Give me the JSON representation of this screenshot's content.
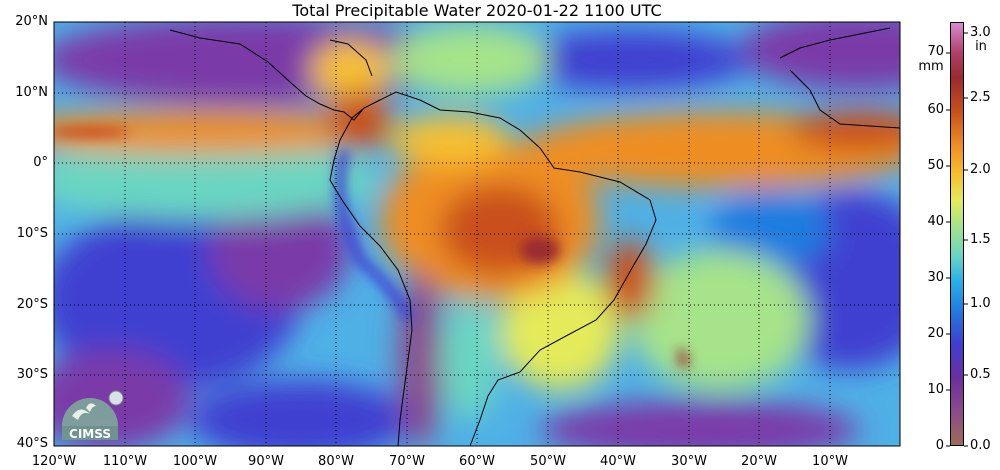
{
  "title": "Total Precipitable Water  2020-01-22 1100 UTC",
  "lat_labels": [
    "20°N",
    "10°N",
    "0°",
    "10°S",
    "20°S",
    "30°S",
    "40°S"
  ],
  "lon_labels": [
    "120°W",
    "110°W",
    "100°W",
    "90°W",
    "80°W",
    "70°W",
    "60°W",
    "50°W",
    "40°W",
    "30°W",
    "20°W",
    "10°W"
  ],
  "colorbar": {
    "left_unit": "mm",
    "right_unit": "in",
    "mm_ticks": [
      "0",
      "10",
      "20",
      "30",
      "40",
      "50",
      "60",
      "70"
    ],
    "in_ticks": [
      "0.0",
      "0.5",
      "1.0",
      "1.5",
      "2.0",
      "2.5",
      "3.0"
    ],
    "colors": [
      "#9e6b5a",
      "#8c4a8a",
      "#6a2fa0",
      "#3f3fd0",
      "#1f7de0",
      "#29b2e8",
      "#6bd6c2",
      "#a6e38a",
      "#e4ea5a",
      "#f6c030",
      "#ee8e24",
      "#c9501a",
      "#9a2a30",
      "#b0406a",
      "#d98ad0"
    ]
  },
  "logo_text": "CIMSS"
}
